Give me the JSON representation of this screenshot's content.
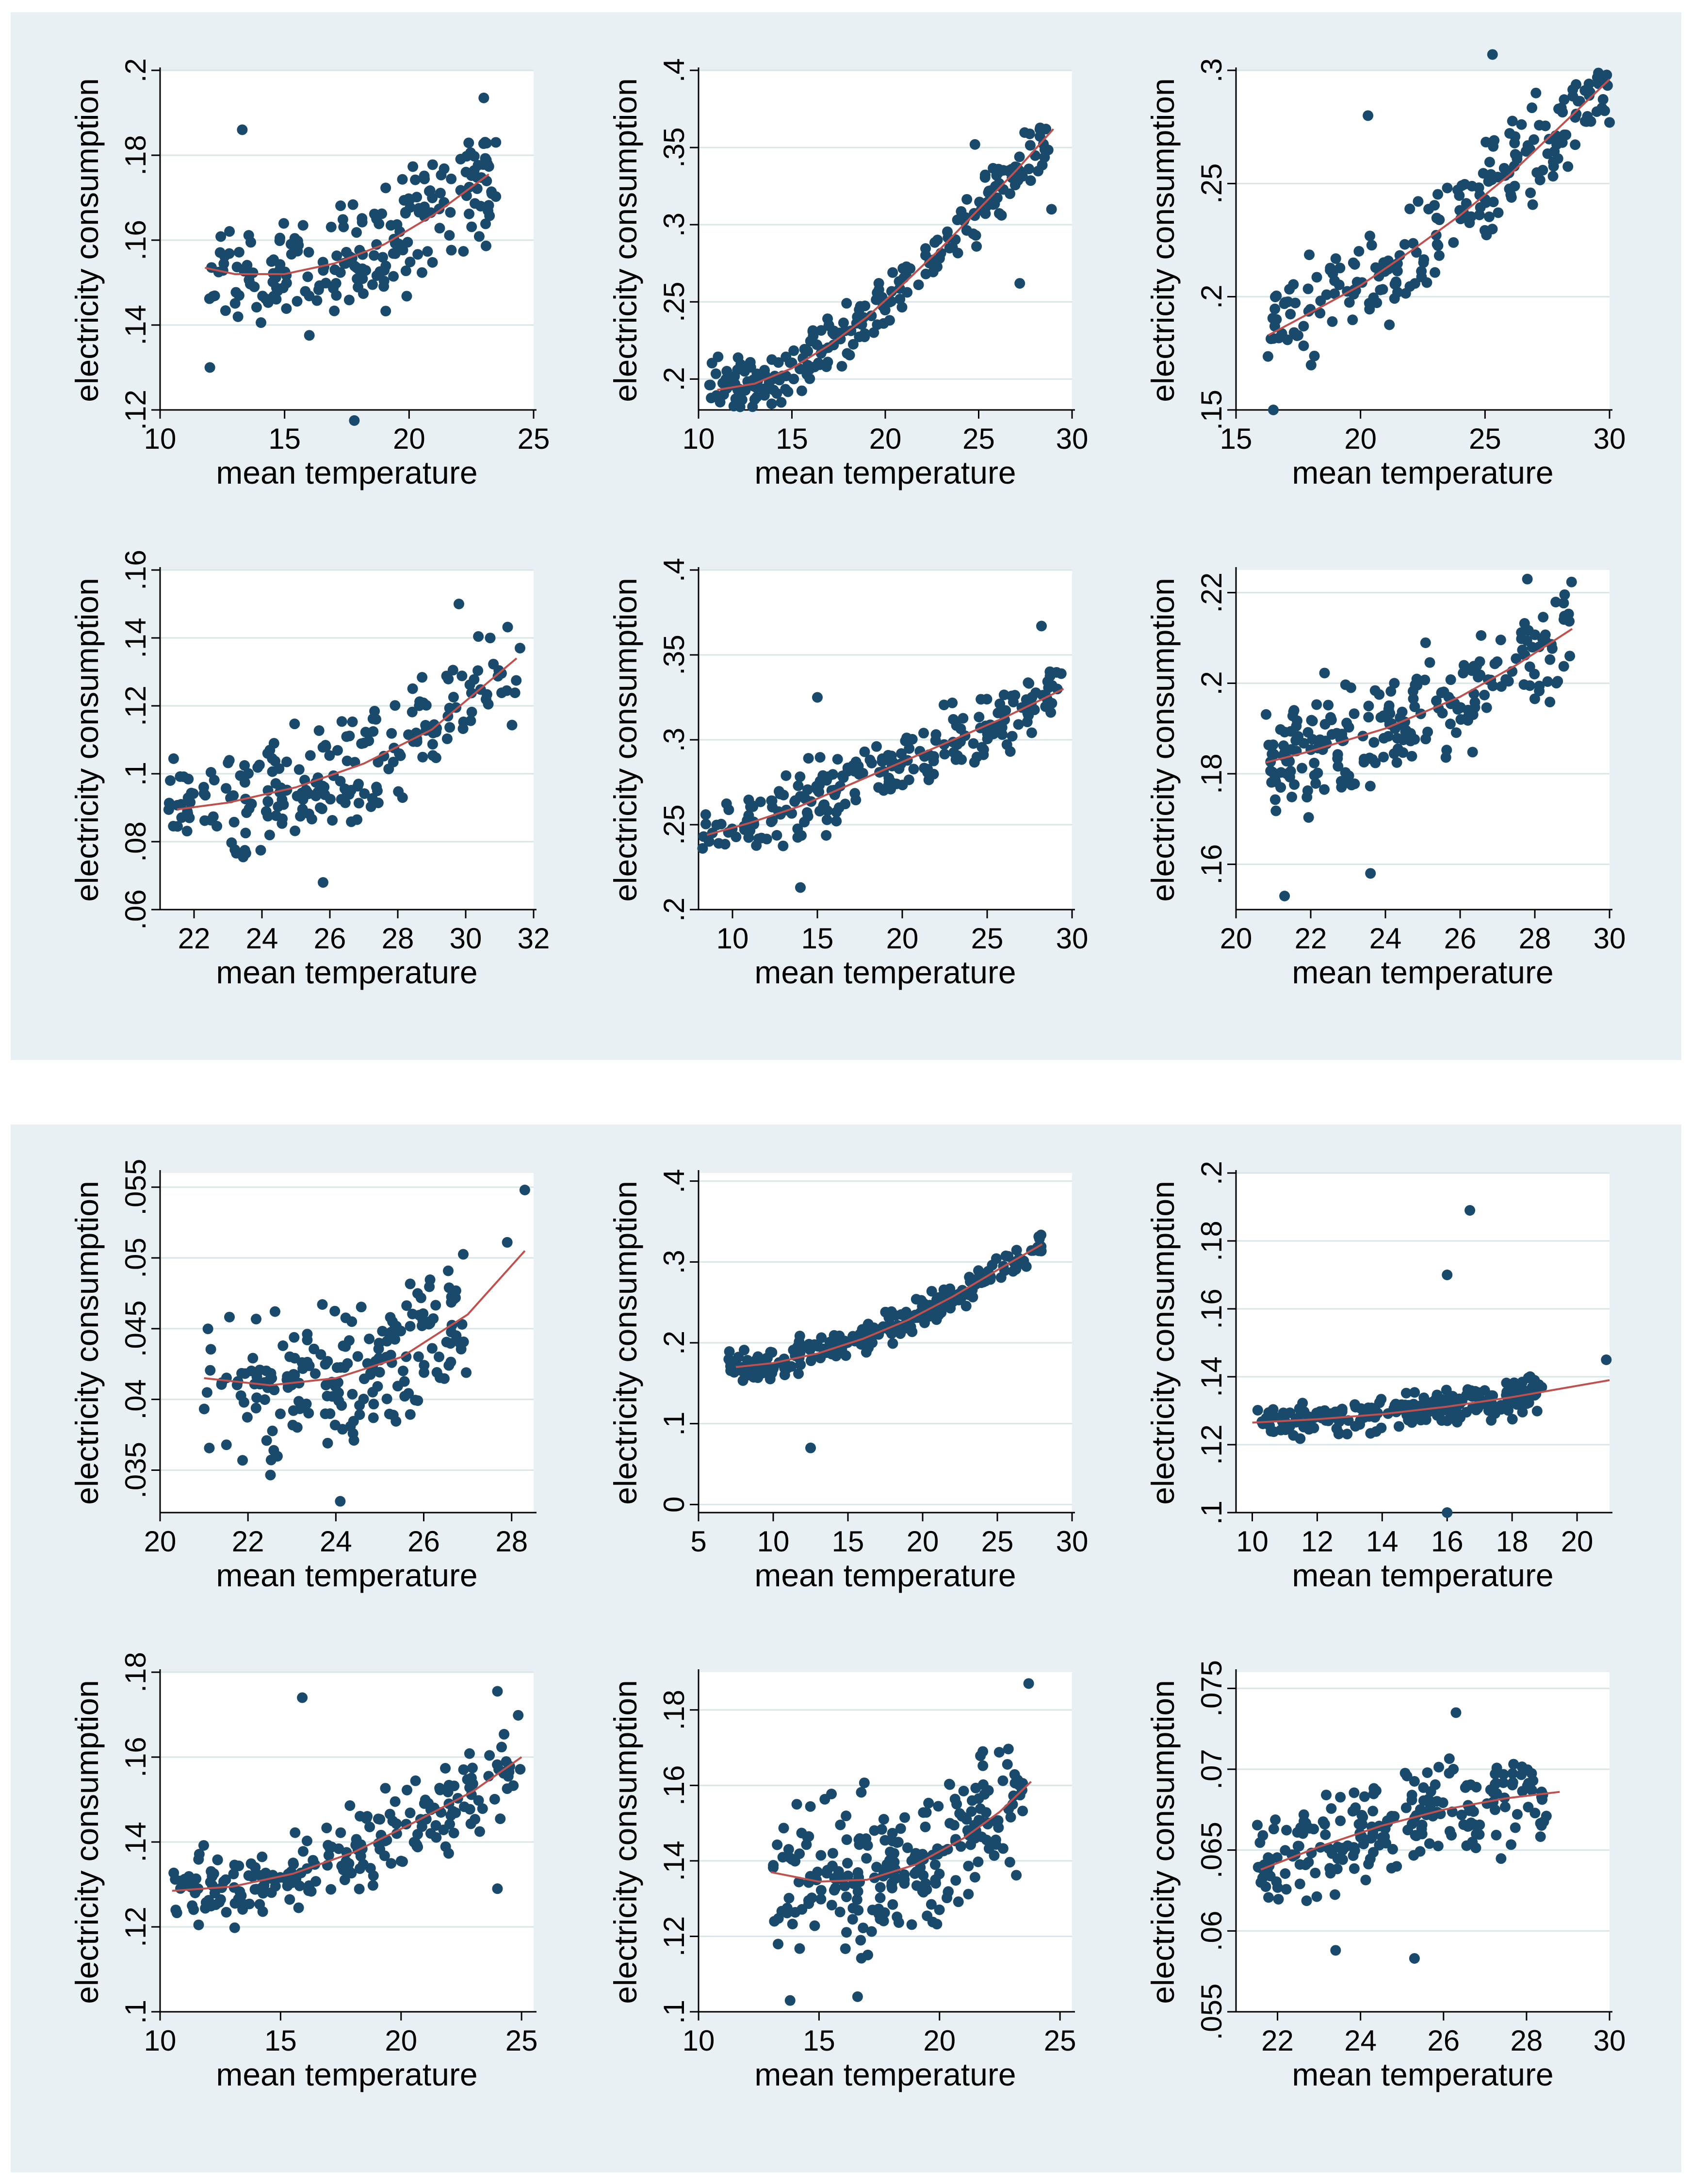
{
  "figure": {
    "point_color": "#1a4a6b",
    "fit_color": "#c0504d",
    "grid_color": "#d8e6e8",
    "panel_bg": "#e9f0f3"
  },
  "chart_data": [
    {
      "type": "scatter",
      "title": "",
      "xlabel": "mean temperature",
      "ylabel": "electricity consumption",
      "xlim": [
        10,
        25
      ],
      "ylim": [
        0.12,
        0.2
      ],
      "xticks": [
        10,
        15,
        20,
        25
      ],
      "xtick_labels": [
        "10",
        "15",
        "20",
        "25"
      ],
      "yticks": [
        0.12,
        0.14,
        0.16,
        0.18,
        0.2
      ],
      "ytick_labels": [
        ".12",
        ".14",
        ".16",
        ".18",
        ".2"
      ],
      "x_range": [
        11.5,
        23.5
      ],
      "trend": [
        [
          11.8,
          0.1535
        ],
        [
          13,
          0.152
        ],
        [
          15,
          0.152
        ],
        [
          17,
          0.1545
        ],
        [
          19,
          0.159
        ],
        [
          21,
          0.166
        ],
        [
          23.2,
          0.1755
        ]
      ],
      "spread": 0.012,
      "n_points": 210,
      "points": [
        [
          17.8,
          0.1175
        ],
        [
          13.3,
          0.186
        ],
        [
          23.0,
          0.1935
        ],
        [
          12.0,
          0.13
        ]
      ]
    },
    {
      "type": "scatter",
      "title": "",
      "xlabel": "mean temperature",
      "ylabel": "electricity consumption",
      "xlim": [
        10,
        30
      ],
      "ylim": [
        0.18,
        0.4
      ],
      "xticks": [
        10,
        15,
        20,
        25,
        30
      ],
      "xtick_labels": [
        "10",
        "15",
        "20",
        "25",
        "30"
      ],
      "yticks": [
        0.2,
        0.25,
        0.3,
        0.35,
        0.4
      ],
      "ytick_labels": [
        ".2",
        ".25",
        ".3",
        ".35",
        ".4"
      ],
      "x_range": [
        10.5,
        29
      ],
      "trend": [
        [
          11,
          0.193
        ],
        [
          13,
          0.197
        ],
        [
          15,
          0.207
        ],
        [
          17,
          0.222
        ],
        [
          19,
          0.24
        ],
        [
          21,
          0.262
        ],
        [
          23,
          0.285
        ],
        [
          25,
          0.31
        ],
        [
          27,
          0.335
        ],
        [
          29,
          0.362
        ]
      ],
      "spread": 0.017,
      "n_points": 240,
      "points": [
        [
          24.8,
          0.352
        ],
        [
          27.2,
          0.262
        ],
        [
          28.9,
          0.31
        ]
      ]
    },
    {
      "type": "scatter",
      "title": "",
      "xlabel": "mean temperature",
      "ylabel": "electricity consumption",
      "xlim": [
        15,
        30
      ],
      "ylim": [
        0.15,
        0.3
      ],
      "xticks": [
        15,
        20,
        25,
        30
      ],
      "xtick_labels": [
        "15",
        "20",
        "25",
        "30"
      ],
      "yticks": [
        0.15,
        0.2,
        0.25,
        0.3
      ],
      "ytick_labels": [
        ".15",
        ".2",
        ".25",
        ".3"
      ],
      "x_range": [
        16.2,
        30
      ],
      "trend": [
        [
          16.3,
          0.183
        ],
        [
          18,
          0.193
        ],
        [
          20,
          0.205
        ],
        [
          22,
          0.22
        ],
        [
          24,
          0.236
        ],
        [
          26,
          0.254
        ],
        [
          28,
          0.275
        ],
        [
          30,
          0.296
        ]
      ],
      "spread": 0.02,
      "n_points": 220,
      "points": [
        [
          16.5,
          0.15
        ],
        [
          25.3,
          0.307
        ],
        [
          20.3,
          0.28
        ],
        [
          30.0,
          0.277
        ]
      ]
    },
    {
      "type": "scatter",
      "title": "",
      "xlabel": "mean temperature",
      "ylabel": "electricity consumption",
      "xlim": [
        21,
        32
      ],
      "ylim": [
        0.06,
        0.16
      ],
      "xticks": [
        22,
        24,
        26,
        28,
        30,
        32
      ],
      "xtick_labels": [
        "22",
        "24",
        "26",
        "28",
        "30",
        "32"
      ],
      "yticks": [
        0.06,
        0.08,
        0.1,
        0.12,
        0.14,
        0.16
      ],
      "ytick_labels": [
        ".06",
        ".08",
        ".1",
        ".12",
        ".14",
        ".16"
      ],
      "x_range": [
        21.2,
        31.5
      ],
      "trend": [
        [
          21.5,
          0.0895
        ],
        [
          23,
          0.0915
        ],
        [
          25,
          0.096
        ],
        [
          27,
          0.103
        ],
        [
          29,
          0.113
        ],
        [
          31.5,
          0.134
        ]
      ],
      "spread": 0.015,
      "n_points": 210,
      "points": [
        [
          25.8,
          0.068
        ],
        [
          29.8,
          0.15
        ],
        [
          31.6,
          0.137
        ],
        [
          21.3,
          0.098
        ]
      ]
    },
    {
      "type": "scatter",
      "title": "",
      "xlabel": "mean temperature",
      "ylabel": "electricity consumption",
      "xlim": [
        8,
        30
      ],
      "ylim": [
        0.2,
        0.4
      ],
      "xticks": [
        10,
        15,
        20,
        25,
        30
      ],
      "xtick_labels": [
        "10",
        "15",
        "20",
        "25",
        "30"
      ],
      "yticks": [
        0.2,
        0.25,
        0.3,
        0.35,
        0.4
      ],
      "ytick_labels": [
        ".2",
        ".25",
        ".3",
        ".35",
        ".4"
      ],
      "x_range": [
        8.2,
        29.5
      ],
      "trend": [
        [
          8.5,
          0.244
        ],
        [
          11,
          0.251
        ],
        [
          14,
          0.261
        ],
        [
          17,
          0.274
        ],
        [
          20,
          0.287
        ],
        [
          23,
          0.3
        ],
        [
          26,
          0.313
        ],
        [
          29.5,
          0.33
        ]
      ],
      "spread": 0.018,
      "n_points": 230,
      "points": [
        [
          15,
          0.325
        ],
        [
          28.2,
          0.367
        ],
        [
          8.3,
          0.243
        ],
        [
          14.0,
          0.213
        ]
      ]
    },
    {
      "type": "scatter",
      "title": "",
      "xlabel": "mean temperature",
      "ylabel": "electricity consumption",
      "xlim": [
        20,
        30
      ],
      "ylim": [
        0.15,
        0.225
      ],
      "xticks": [
        20,
        22,
        24,
        26,
        28,
        30
      ],
      "xtick_labels": [
        "20",
        "22",
        "24",
        "26",
        "28",
        "30"
      ],
      "yticks": [
        0.16,
        0.18,
        0.2,
        0.22
      ],
      "ytick_labels": [
        ".16",
        ".18",
        ".2",
        ".22"
      ],
      "x_range": [
        20.8,
        29
      ],
      "trend": [
        [
          20.8,
          0.1825
        ],
        [
          22,
          0.185
        ],
        [
          24,
          0.19
        ],
        [
          26,
          0.197
        ],
        [
          27.5,
          0.204
        ],
        [
          29,
          0.212
        ]
      ],
      "spread": 0.011,
      "n_points": 230,
      "points": [
        [
          21.3,
          0.153
        ],
        [
          23.6,
          0.158
        ],
        [
          27.8,
          0.223
        ]
      ]
    },
    {
      "type": "scatter",
      "title": "",
      "xlabel": "mean temperature",
      "ylabel": "electricity consumption",
      "xlim": [
        20,
        28.5
      ],
      "ylim": [
        0.032,
        0.056
      ],
      "xticks": [
        20,
        22,
        24,
        26,
        28
      ],
      "xtick_labels": [
        "20",
        "22",
        "24",
        "26",
        "28"
      ],
      "yticks": [
        0.035,
        0.04,
        0.045,
        0.05,
        0.055
      ],
      "ytick_labels": [
        ".035",
        ".04",
        ".045",
        ".05",
        ".055"
      ],
      "x_range": [
        21,
        27
      ],
      "trend": [
        [
          21,
          0.0415
        ],
        [
          22.5,
          0.041
        ],
        [
          24,
          0.0415
        ],
        [
          25.5,
          0.043
        ],
        [
          27,
          0.046
        ],
        [
          28.3,
          0.0505
        ]
      ],
      "spread": 0.0045,
      "n_points": 200,
      "points": [
        [
          28.3,
          0.0548
        ],
        [
          24.1,
          0.0328
        ],
        [
          27.9,
          0.0511
        ]
      ]
    },
    {
      "type": "scatter",
      "title": "",
      "xlabel": "mean temperature",
      "ylabel": "electricity consumption",
      "xlim": [
        5,
        30
      ],
      "ylim": [
        -0.01,
        0.41
      ],
      "xticks": [
        5,
        10,
        15,
        20,
        25,
        30
      ],
      "xtick_labels": [
        "5",
        "10",
        "15",
        "20",
        "25",
        "30"
      ],
      "yticks": [
        0,
        0.1,
        0.2,
        0.3,
        0.4
      ],
      "ytick_labels": [
        "0",
        ".1",
        ".2",
        ".3",
        ".4"
      ],
      "x_range": [
        7,
        28
      ],
      "trend": [
        [
          7.5,
          0.17
        ],
        [
          10,
          0.175
        ],
        [
          13,
          0.187
        ],
        [
          16,
          0.205
        ],
        [
          19,
          0.228
        ],
        [
          22,
          0.257
        ],
        [
          25,
          0.29
        ],
        [
          28,
          0.322
        ]
      ],
      "spread": 0.018,
      "n_points": 240,
      "points": [
        [
          12.5,
          0.07
        ]
      ]
    },
    {
      "type": "scatter",
      "title": "",
      "xlabel": "mean temperature",
      "ylabel": "electricity consumption",
      "xlim": [
        9.5,
        21
      ],
      "ylim": [
        0.1,
        0.2
      ],
      "xticks": [
        10,
        12,
        14,
        16,
        18,
        20
      ],
      "xtick_labels": [
        "10",
        "12",
        "14",
        "16",
        "18",
        "20"
      ],
      "yticks": [
        0.1,
        0.12,
        0.14,
        0.16,
        0.18,
        0.2
      ],
      "ytick_labels": [
        ".1",
        ".12",
        ".14",
        ".16",
        ".18",
        ".2"
      ],
      "x_range": [
        10,
        19
      ],
      "trend": [
        [
          10,
          0.1265
        ],
        [
          12,
          0.1275
        ],
        [
          14,
          0.129
        ],
        [
          16,
          0.1312
        ],
        [
          18,
          0.134
        ],
        [
          21,
          0.139
        ]
      ],
      "spread": 0.0045,
      "n_points": 230,
      "points": [
        [
          16.7,
          0.189
        ],
        [
          16,
          0.17
        ],
        [
          16,
          0.1
        ],
        [
          20.9,
          0.145
        ]
      ]
    },
    {
      "type": "scatter",
      "title": "",
      "xlabel": "mean temperature",
      "ylabel": "electricity consumption",
      "xlim": [
        10,
        25.5
      ],
      "ylim": [
        0.1,
        0.18
      ],
      "xticks": [
        10,
        15,
        20,
        25
      ],
      "xtick_labels": [
        "10",
        "15",
        "20",
        "25"
      ],
      "yticks": [
        0.1,
        0.12,
        0.14,
        0.16,
        0.18
      ],
      "ytick_labels": [
        ".1",
        ".12",
        ".14",
        ".16",
        ".18"
      ],
      "x_range": [
        10.5,
        25
      ],
      "trend": [
        [
          10.5,
          0.1285
        ],
        [
          13,
          0.1295
        ],
        [
          15.5,
          0.1325
        ],
        [
          18,
          0.1375
        ],
        [
          20.5,
          0.1445
        ],
        [
          23,
          0.152
        ],
        [
          25,
          0.16
        ]
      ],
      "spread": 0.0085,
      "n_points": 220,
      "points": [
        [
          15.9,
          0.174
        ],
        [
          24,
          0.1755
        ],
        [
          24,
          0.129
        ]
      ]
    },
    {
      "type": "scatter",
      "title": "",
      "xlabel": "mean temperature",
      "ylabel": "electricity consumption",
      "xlim": [
        10,
        25.5
      ],
      "ylim": [
        0.1,
        0.19
      ],
      "xticks": [
        10,
        15,
        20,
        25
      ],
      "xtick_labels": [
        "10",
        "15",
        "20",
        "25"
      ],
      "yticks": [
        0.1,
        0.12,
        0.14,
        0.16,
        0.18
      ],
      "ytick_labels": [
        ".1",
        ".12",
        ".14",
        ".16",
        ".18"
      ],
      "x_range": [
        13,
        23.5
      ],
      "trend": [
        [
          13,
          0.137
        ],
        [
          15,
          0.1345
        ],
        [
          17,
          0.135
        ],
        [
          19,
          0.139
        ],
        [
          21,
          0.146
        ],
        [
          22.5,
          0.153
        ],
        [
          23.8,
          0.161
        ]
      ],
      "spread": 0.017,
      "n_points": 240,
      "points": [
        [
          23.7,
          0.187
        ],
        [
          16.6,
          0.104
        ],
        [
          13.8,
          0.103
        ]
      ]
    },
    {
      "type": "scatter",
      "title": "",
      "xlabel": "mean temperature",
      "ylabel": "electricity consumption",
      "xlim": [
        21,
        30
      ],
      "ylim": [
        0.055,
        0.076
      ],
      "xticks": [
        22,
        24,
        26,
        28,
        30
      ],
      "xtick_labels": [
        "22",
        "24",
        "26",
        "28",
        "30"
      ],
      "yticks": [
        0.055,
        0.06,
        0.065,
        0.07,
        0.075
      ],
      "ytick_labels": [
        ".055",
        ".06",
        ".065",
        ".07",
        ".075"
      ],
      "x_range": [
        21.5,
        28.5
      ],
      "trend": [
        [
          21.6,
          0.0638
        ],
        [
          23,
          0.0652
        ],
        [
          24.5,
          0.0665
        ],
        [
          26,
          0.0675
        ],
        [
          27.5,
          0.0682
        ],
        [
          28.8,
          0.0686
        ]
      ],
      "spread": 0.0028,
      "n_points": 220,
      "points": [
        [
          25.3,
          0.0583
        ],
        [
          26.3,
          0.0735
        ],
        [
          23.4,
          0.0588
        ]
      ]
    }
  ]
}
